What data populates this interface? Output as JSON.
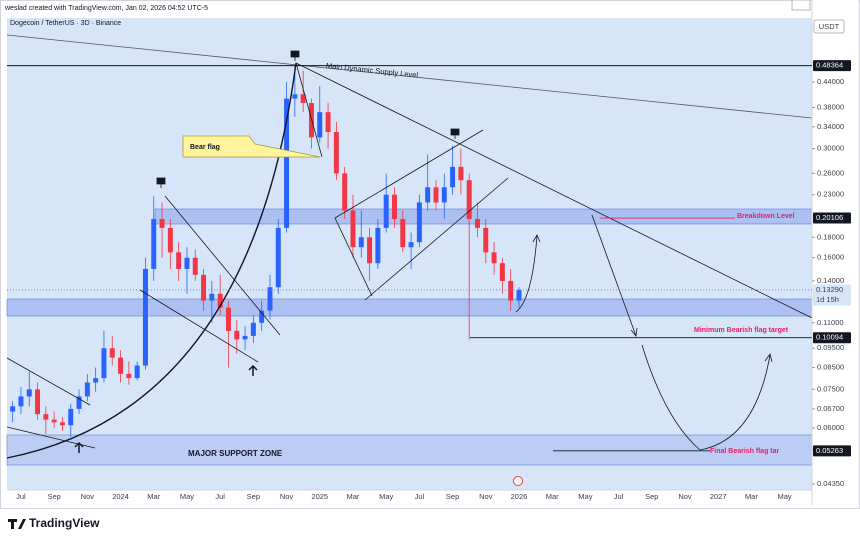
{
  "chart_data": {
    "type": "candlestick",
    "credit": "weslad created with TradingView.com, Jan 02, 2026 04:52 UTC-5",
    "title": "Dogecoin / TetherUS · 3D · Binance",
    "currency": "USDT",
    "brand": "TradingView",
    "ylog": true,
    "ylim": [
      0.042,
      0.674
    ],
    "xlim": [
      -0.84,
      47.65
    ],
    "up_color": "#2962ff",
    "down_color": "#f23645",
    "yticks": [
      {
        "value": 0.44,
        "label": "0.44000"
      },
      {
        "value": 0.38,
        "label": "0.38000"
      },
      {
        "value": 0.34,
        "label": "0.34000"
      },
      {
        "value": 0.3,
        "label": "0.30000"
      },
      {
        "value": 0.26,
        "label": "0.26000"
      },
      {
        "value": 0.23,
        "label": "0.23000"
      },
      {
        "value": 0.18,
        "label": "0.18000"
      },
      {
        "value": 0.16,
        "label": "0.16000"
      },
      {
        "value": 0.14,
        "label": "0.14000"
      },
      {
        "value": 0.11,
        "label": "0.11000"
      },
      {
        "value": 0.095,
        "label": "0.09500"
      },
      {
        "value": 0.085,
        "label": "0.08500"
      },
      {
        "value": 0.075,
        "label": "0.07500"
      },
      {
        "value": 0.067,
        "label": "0.06700"
      },
      {
        "value": 0.06,
        "label": "0.06000"
      },
      {
        "value": 0.053,
        "label": "0.05300"
      },
      {
        "value": 0.0435,
        "label": "0.04350"
      }
    ],
    "high": [
      0.07,
      0.076,
      0.083,
      0.078,
      0.068,
      0.066,
      0.064,
      0.069,
      0.075,
      0.082,
      0.085,
      0.105,
      0.102,
      0.094,
      0.088,
      0.088,
      0.16,
      0.228,
      0.22,
      0.2,
      0.175,
      0.17,
      0.168,
      0.15,
      0.14,
      0.145,
      0.125,
      0.112,
      0.108,
      0.115,
      0.125,
      0.145,
      0.2,
      0.44,
      0.484,
      0.47,
      0.4,
      0.43,
      0.39,
      0.35,
      0.27,
      0.23,
      0.21,
      0.19,
      0.2,
      0.26,
      0.24,
      0.21,
      0.185,
      0.23,
      0.29,
      0.25,
      0.26,
      0.305,
      0.3,
      0.26,
      0.22,
      0.2,
      0.175,
      0.16,
      0.15,
      0.135
    ],
    "low": [
      0.062,
      0.065,
      0.068,
      0.063,
      0.058,
      0.06,
      0.059,
      0.057,
      0.065,
      0.07,
      0.074,
      0.078,
      0.086,
      0.078,
      0.077,
      0.079,
      0.084,
      0.14,
      0.16,
      0.15,
      0.14,
      0.13,
      0.14,
      0.118,
      0.11,
      0.115,
      0.085,
      0.092,
      0.094,
      0.098,
      0.105,
      0.112,
      0.13,
      0.185,
      0.36,
      0.37,
      0.3,
      0.31,
      0.3,
      0.25,
      0.2,
      0.16,
      0.16,
      0.14,
      0.15,
      0.185,
      0.19,
      0.165,
      0.15,
      0.17,
      0.21,
      0.21,
      0.2,
      0.23,
      0.23,
      0.1,
      0.18,
      0.155,
      0.145,
      0.13,
      0.118,
      0.12
    ],
    "price_badges": [
      {
        "value": 0.48364,
        "label": "0.48364"
      },
      {
        "value": 0.20106,
        "label": "0.20106"
      },
      {
        "value": 0.10094,
        "label": "0.10094"
      },
      {
        "value": 0.05263,
        "label": "0.05263"
      }
    ],
    "last_price": {
      "value": 0.1329,
      "label": "0.13290",
      "countdown": "1d 15h"
    },
    "xticks": [
      {
        "value": 0,
        "label": "Jul"
      },
      {
        "value": 2,
        "label": "Sep"
      },
      {
        "value": 4,
        "label": "Nov"
      },
      {
        "value": 6,
        "label": "2024"
      },
      {
        "value": 8,
        "label": "Mar"
      },
      {
        "value": 10,
        "label": "May"
      },
      {
        "value": 12,
        "label": "Jul"
      },
      {
        "value": 14,
        "label": "Sep"
      },
      {
        "value": 16,
        "label": "Nov"
      },
      {
        "value": 18,
        "label": "2025"
      },
      {
        "value": 20,
        "label": "Mar"
      },
      {
        "value": 22,
        "label": "May"
      },
      {
        "value": 24,
        "label": "Jul"
      },
      {
        "value": 26,
        "label": "Sep"
      },
      {
        "value": 28,
        "label": "Nov"
      },
      {
        "value": 30,
        "label": "2026"
      },
      {
        "value": 32,
        "label": "Mar"
      },
      {
        "value": 34,
        "label": "May"
      },
      {
        "value": 36,
        "label": "Jul"
      },
      {
        "value": 38,
        "label": "Sep"
      },
      {
        "value": 40,
        "label": "Nov"
      },
      {
        "value": 42,
        "label": "2027"
      },
      {
        "value": 44,
        "label": "Mar"
      },
      {
        "value": 46,
        "label": "May"
      }
    ],
    "x": [
      -0.5,
      0,
      0.5,
      1,
      1.5,
      2,
      2.5,
      3,
      3.5,
      4,
      4.5,
      5,
      5.5,
      6,
      6.5,
      7,
      7.5,
      8,
      8.5,
      9,
      9.5,
      10,
      10.5,
      11,
      11.5,
      12,
      12.5,
      13,
      13.5,
      14,
      14.5,
      15,
      15.5,
      16,
      16.5,
      17,
      17.5,
      18,
      18.5,
      19,
      19.5,
      20,
      20.5,
      21,
      21.5,
      22,
      22.5,
      23,
      23.5,
      24,
      24.5,
      25,
      25.5,
      26,
      26.5,
      27,
      27.5,
      28,
      28.5,
      29,
      29.5,
      30
    ],
    "open": [
      0.066,
      0.068,
      0.072,
      0.075,
      0.065,
      0.063,
      0.062,
      0.061,
      0.067,
      0.072,
      0.078,
      0.08,
      0.095,
      0.09,
      0.082,
      0.08,
      0.086,
      0.15,
      0.2,
      0.19,
      0.165,
      0.15,
      0.16,
      0.145,
      0.125,
      0.13,
      0.12,
      0.105,
      0.1,
      0.102,
      0.11,
      0.118,
      0.135,
      0.19,
      0.4,
      0.41,
      0.39,
      0.32,
      0.37,
      0.33,
      0.26,
      0.21,
      0.17,
      0.18,
      0.155,
      0.19,
      0.23,
      0.2,
      0.17,
      0.175,
      0.22,
      0.24,
      0.22,
      0.24,
      0.27,
      0.25,
      0.2,
      0.19,
      0.165,
      0.155,
      0.14,
      0.125
    ],
    "close": [
      0.068,
      0.072,
      0.075,
      0.065,
      0.063,
      0.062,
      0.061,
      0.067,
      0.072,
      0.078,
      0.08,
      0.095,
      0.09,
      0.082,
      0.08,
      0.086,
      0.15,
      0.2,
      0.19,
      0.165,
      0.15,
      0.16,
      0.145,
      0.125,
      0.13,
      0.12,
      0.105,
      0.1,
      0.102,
      0.11,
      0.118,
      0.135,
      0.19,
      0.4,
      0.41,
      0.39,
      0.32,
      0.37,
      0.33,
      0.26,
      0.21,
      0.17,
      0.18,
      0.155,
      0.19,
      0.23,
      0.2,
      0.17,
      0.175,
      0.22,
      0.24,
      0.22,
      0.24,
      0.27,
      0.25,
      0.2,
      0.19,
      0.165,
      0.155,
      0.14,
      0.125,
      0.1329
    ],
    "annotations": {
      "supply": "Main Dynamic Supply Level",
      "bear_flag": "Bear flag",
      "breakdown": "Breakdown Level",
      "min_target": "Minimum Bearish flag target",
      "support": "MAJOR SUPPORT ZONE",
      "final_target": "Final Bearish flag tar"
    }
  }
}
